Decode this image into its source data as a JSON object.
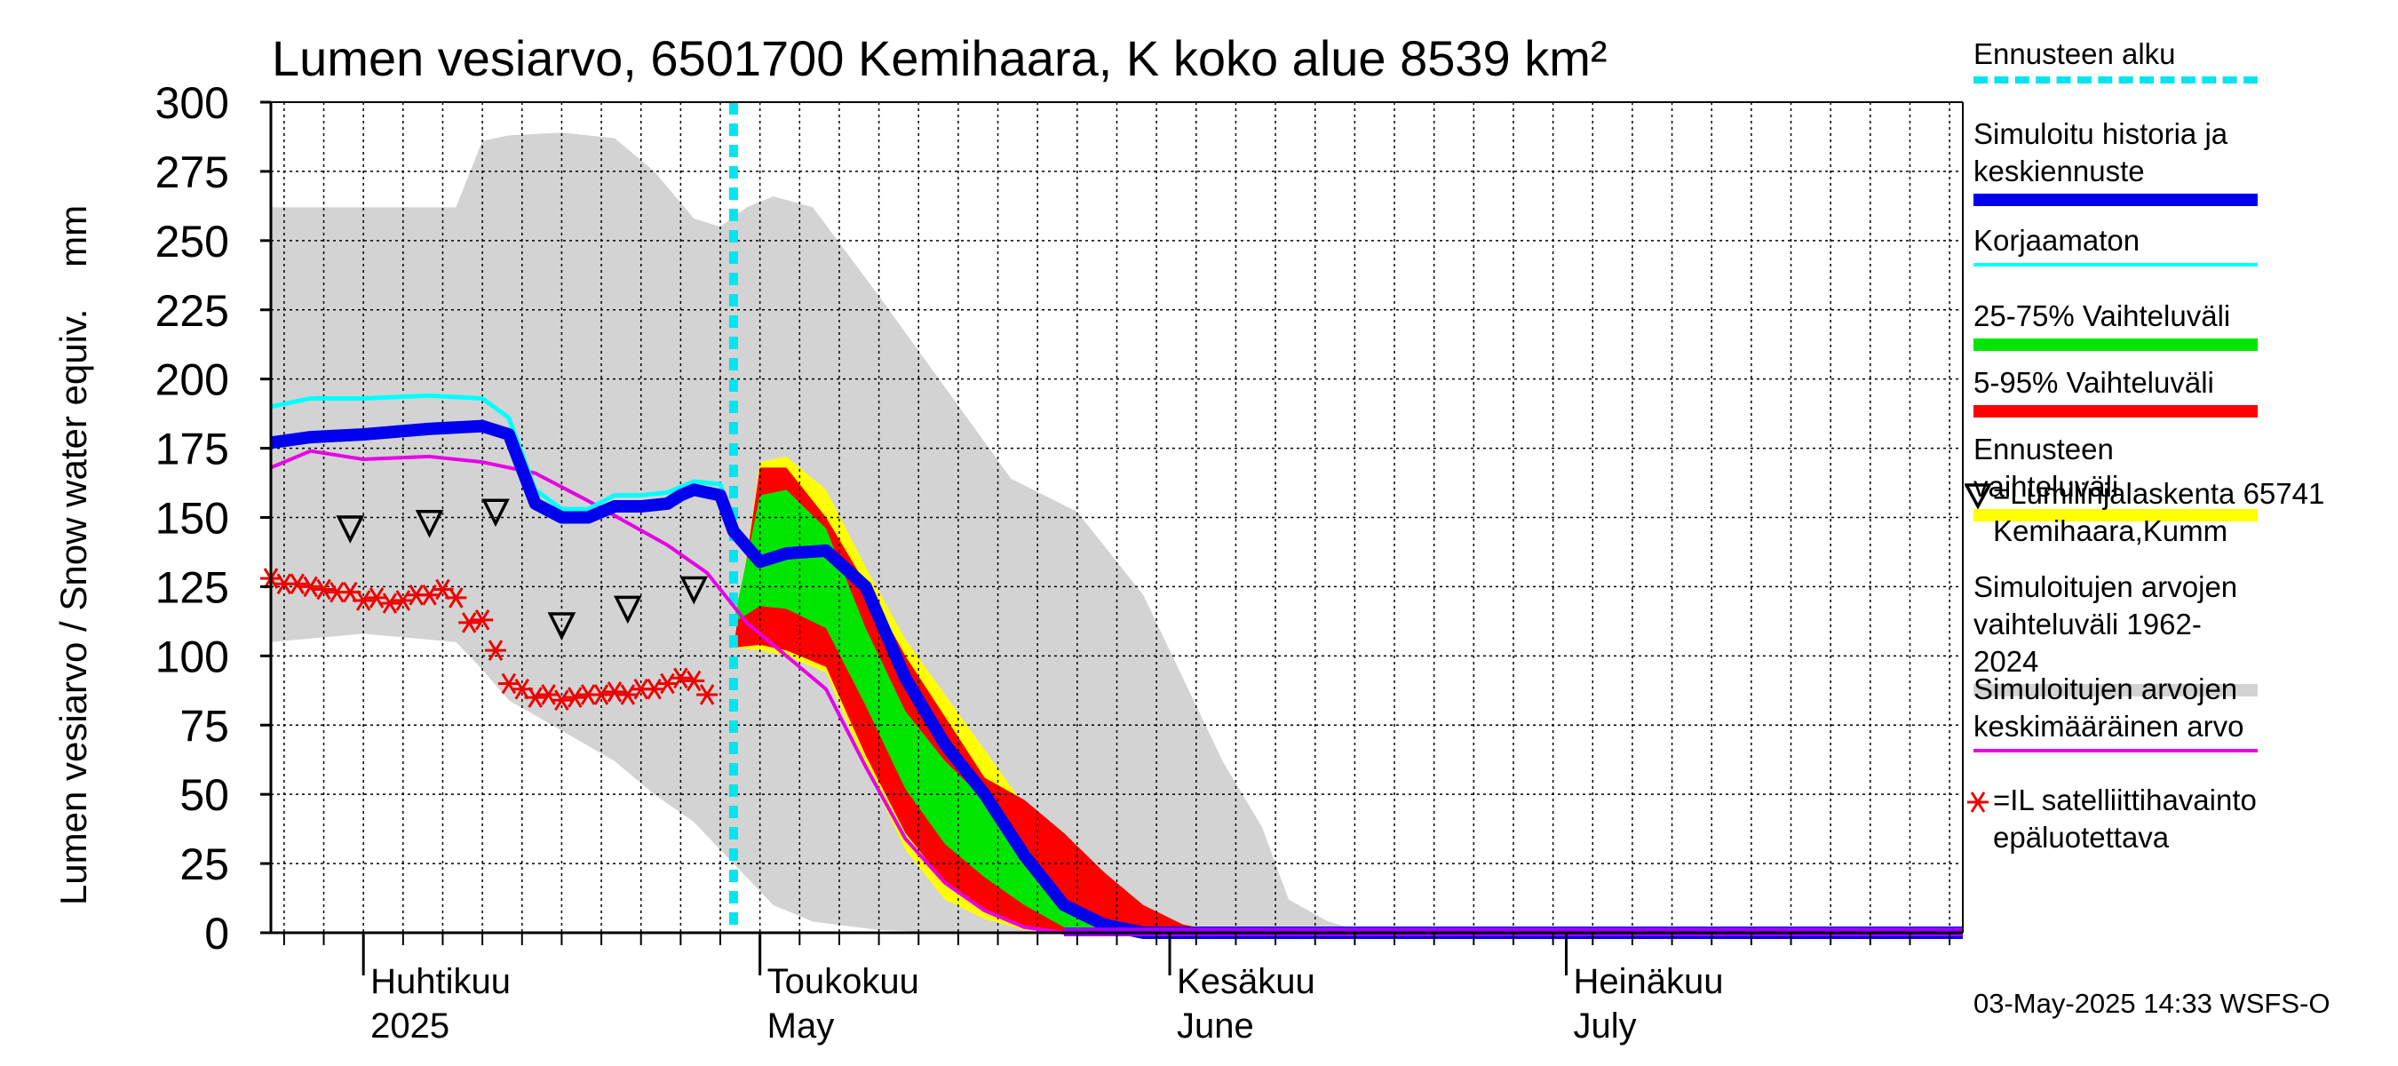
{
  "chart_data": {
    "type": "area",
    "title": "Lumen vesiarvo, 6501700 Kemihaara, K koko alue 8539 km²",
    "ylabel": "Lumen vesiarvo / Snow water equiv.    mm",
    "ylim": [
      0,
      300
    ],
    "yticks": [
      "0",
      "25",
      "50",
      "75",
      "100",
      "125",
      "150",
      "175",
      "200",
      "225",
      "250",
      "275",
      "300"
    ],
    "xlim": [
      "2025-03-25",
      "2025-07-31"
    ],
    "month_labels": [
      {
        "fi": "Huhtikuu",
        "en": "2025",
        "date": "2025-04-01"
      },
      {
        "fi": "Toukokuu",
        "en": "May",
        "date": "2025-05-01"
      },
      {
        "fi": "Kesäkuu",
        "en": "June",
        "date": "2025-06-01"
      },
      {
        "fi": "Heinäkuu",
        "en": "July",
        "date": "2025-07-01"
      }
    ],
    "forecast_start": "2025-04-29",
    "grid": true,
    "legend_position": "right",
    "series": [
      {
        "name": "Simuloitujen arvojen vaihteluväli 1962-2024",
        "color": "#d3d3d3",
        "kind": "band",
        "x": [
          "2025-03-25",
          "2025-04-01",
          "2025-04-08",
          "2025-04-10",
          "2025-04-12",
          "2025-04-16",
          "2025-04-20",
          "2025-04-23",
          "2025-04-26",
          "2025-04-28",
          "2025-04-30",
          "2025-05-02",
          "2025-05-05",
          "2025-05-10",
          "2025-05-15",
          "2025-05-20",
          "2025-05-25",
          "2025-05-30",
          "2025-06-05",
          "2025-06-08",
          "2025-06-10",
          "2025-06-13",
          "2025-06-16",
          "2025-06-20",
          "2025-07-31"
        ],
        "upper": [
          262,
          262,
          262,
          286,
          288,
          289,
          287,
          275,
          258,
          255,
          262,
          266,
          262,
          230,
          197,
          164,
          152,
          122,
          62,
          38,
          12,
          4,
          0,
          0,
          0
        ],
        "lower": [
          105,
          108,
          105,
          95,
          84,
          73,
          62,
          50,
          40,
          30,
          20,
          10,
          4,
          1,
          0,
          0,
          0,
          0,
          0,
          0,
          0,
          0,
          0,
          0,
          0
        ]
      },
      {
        "name": "Ennusteen vaihteluväli",
        "color": "#ffff00",
        "kind": "band",
        "x": [
          "2025-04-29",
          "2025-05-01",
          "2025-05-03",
          "2025-05-06",
          "2025-05-09",
          "2025-05-12",
          "2025-05-15",
          "2025-05-18",
          "2025-05-21",
          "2025-05-24",
          "2025-05-27",
          "2025-05-30",
          "2025-06-02",
          "2025-06-06"
        ],
        "upper": [
          103,
          170,
          172,
          160,
          132,
          106,
          86,
          66,
          46,
          26,
          16,
          8,
          3,
          0
        ],
        "lower": [
          103,
          102,
          100,
          94,
          60,
          30,
          12,
          5,
          1,
          0,
          0,
          0,
          0,
          0
        ]
      },
      {
        "name": "5-95% Vaihteluväli",
        "color": "#ff0000",
        "kind": "band",
        "x": [
          "2025-04-29",
          "2025-05-01",
          "2025-05-03",
          "2025-05-06",
          "2025-05-09",
          "2025-05-12",
          "2025-05-15",
          "2025-05-18",
          "2025-05-21",
          "2025-05-24",
          "2025-05-27",
          "2025-05-30",
          "2025-06-02",
          "2025-06-05"
        ],
        "upper": [
          103,
          168,
          168,
          150,
          126,
          100,
          78,
          56,
          48,
          36,
          22,
          10,
          3,
          0
        ],
        "lower": [
          103,
          104,
          102,
          96,
          64,
          36,
          18,
          8,
          2,
          0,
          0,
          0,
          0,
          0
        ]
      },
      {
        "name": "25-75% Vaihteluväli",
        "color": "#00e600",
        "kind": "band",
        "x": [
          "2025-04-29",
          "2025-05-01",
          "2025-05-03",
          "2025-05-06",
          "2025-05-09",
          "2025-05-12",
          "2025-05-15",
          "2025-05-18",
          "2025-05-21",
          "2025-05-24",
          "2025-05-27"
        ],
        "upper": [
          112,
          158,
          160,
          146,
          110,
          80,
          62,
          48,
          32,
          12,
          1
        ],
        "lower": [
          112,
          118,
          117,
          110,
          82,
          52,
          32,
          20,
          10,
          2,
          0
        ]
      },
      {
        "name": "Simuloitu historia ja keskiennuste",
        "color": "#0000ee",
        "kind": "line",
        "width": 14,
        "x": [
          "2025-03-25",
          "2025-03-28",
          "2025-04-01",
          "2025-04-06",
          "2025-04-10",
          "2025-04-12",
          "2025-04-14",
          "2025-04-16",
          "2025-04-18",
          "2025-04-20",
          "2025-04-22",
          "2025-04-24",
          "2025-04-25",
          "2025-04-26",
          "2025-04-28",
          "2025-04-29",
          "2025-05-01",
          "2025-05-03",
          "2025-05-06",
          "2025-05-09",
          "2025-05-12",
          "2025-05-15",
          "2025-05-18",
          "2025-05-21",
          "2025-05-24",
          "2025-05-27",
          "2025-05-30",
          "2025-07-31"
        ],
        "values": [
          177,
          179,
          180,
          182,
          183,
          180,
          155,
          150,
          150,
          154,
          154,
          155,
          158,
          160,
          158,
          145,
          134,
          137,
          138,
          125,
          92,
          68,
          50,
          28,
          10,
          3,
          0,
          0
        ]
      },
      {
        "name": "Korjaamaton",
        "color": "#00ffff",
        "kind": "line",
        "width": 5,
        "x": [
          "2025-03-25",
          "2025-03-28",
          "2025-04-01",
          "2025-04-06",
          "2025-04-10",
          "2025-04-12",
          "2025-04-14",
          "2025-04-16",
          "2025-04-18",
          "2025-04-20",
          "2025-04-22",
          "2025-04-24",
          "2025-04-26",
          "2025-04-28",
          "2025-04-29"
        ],
        "values": [
          190,
          193,
          193,
          194,
          193,
          186,
          160,
          153,
          153,
          158,
          158,
          159,
          163,
          162,
          148
        ]
      },
      {
        "name": "Simuloitujen arvojen keskimääräinen arvo",
        "color": "#e600e6",
        "kind": "line",
        "width": 4,
        "x": [
          "2025-03-25",
          "2025-03-28",
          "2025-04-01",
          "2025-04-06",
          "2025-04-10",
          "2025-04-14",
          "2025-04-18",
          "2025-04-21",
          "2025-04-24",
          "2025-04-27",
          "2025-04-30",
          "2025-05-03",
          "2025-05-06",
          "2025-05-09",
          "2025-05-12",
          "2025-05-15",
          "2025-05-18",
          "2025-05-21",
          "2025-05-24",
          "2025-07-31"
        ],
        "values": [
          168,
          174,
          171,
          172,
          170,
          166,
          156,
          148,
          140,
          130,
          112,
          100,
          88,
          60,
          34,
          18,
          8,
          2,
          0,
          0
        ]
      },
      {
        "name": "=Lumilinjalaskenta 65741 Kemihaara,Kumm",
        "color": "#000000",
        "kind": "triangles",
        "x": [
          "2025-03-31",
          "2025-04-06",
          "2025-04-11",
          "2025-04-16",
          "2025-04-21",
          "2025-04-26"
        ],
        "values": [
          146,
          148,
          152,
          111,
          117,
          124
        ]
      },
      {
        "name": "=IL satelliittihavainto epäluotettava",
        "color": "#ee0000",
        "kind": "stars",
        "x": [
          "2025-03-25",
          "2025-03-26",
          "2025-03-27",
          "2025-03-28",
          "2025-03-29",
          "2025-03-30",
          "2025-03-31",
          "2025-04-01",
          "2025-04-02",
          "2025-04-03",
          "2025-04-04",
          "2025-04-05",
          "2025-04-06",
          "2025-04-07",
          "2025-04-08",
          "2025-04-09",
          "2025-04-10",
          "2025-04-11",
          "2025-04-12",
          "2025-04-13",
          "2025-04-14",
          "2025-04-15",
          "2025-04-16",
          "2025-04-17",
          "2025-04-18",
          "2025-04-19",
          "2025-04-20",
          "2025-04-21",
          "2025-04-22",
          "2025-04-23",
          "2025-04-24",
          "2025-04-25",
          "2025-04-26",
          "2025-04-27"
        ],
        "values": [
          128,
          126,
          126,
          125,
          124,
          123,
          123,
          120,
          121,
          119,
          120,
          122,
          122,
          124,
          121,
          112,
          113,
          102,
          90,
          88,
          85,
          86,
          84,
          85,
          86,
          86,
          87,
          86,
          88,
          88,
          90,
          92,
          91,
          86
        ]
      }
    ]
  },
  "legend": [
    {
      "label": "Ennusteen alku",
      "color": "#00e5ee",
      "style": "dashed"
    },
    {
      "label": "Simuloitu historia ja keskiennuste",
      "color": "#0000ee",
      "style": "thick"
    },
    {
      "label": "Korjaamaton",
      "color": "#00ffff",
      "style": "line"
    },
    {
      "label": "25-75% Vaihteluväli",
      "color": "#00e600",
      "style": "thick"
    },
    {
      "label": "5-95% Vaihteluväli",
      "color": "#ff0000",
      "style": "thick"
    },
    {
      "label": "Ennusteen vaihteluväli",
      "color": "#ffff00",
      "style": "thick"
    },
    {
      "label": "=Lumilinjalaskenta 65741 Kemihaara,Kumm",
      "color": "#000000",
      "style": "triangle"
    },
    {
      "label": "Simuloitujen arvojen vaihteluväli 1962-2024",
      "color": "#d3d3d3",
      "style": "thick"
    },
    {
      "label": "Simuloitujen arvojen keskimääräinen arvo",
      "color": "#e600e6",
      "style": "line"
    },
    {
      "label": "=IL satelliittihavainto epäluotettava",
      "color": "#ee0000",
      "style": "star"
    }
  ],
  "footer": "03-May-2025 14:33 WSFS-O"
}
